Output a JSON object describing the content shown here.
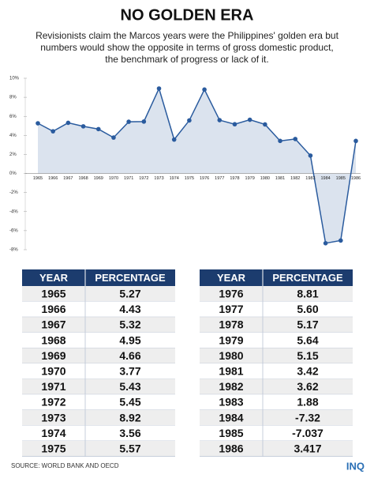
{
  "header": {
    "title": "NO GOLDEN ERA",
    "subtitle": [
      "Revisionists claim the Marcos years were the Philippines' golden era but",
      "numbers would show the opposite in terms of gross domestic product,",
      "the benchmark of progress or lack of it."
    ]
  },
  "chart_data": {
    "type": "line",
    "categories": [
      "1965",
      "1966",
      "1967",
      "1968",
      "1969",
      "1970",
      "1971",
      "1972",
      "1973",
      "1974",
      "1975",
      "1976",
      "1977",
      "1978",
      "1979",
      "1980",
      "1981",
      "1982",
      "1983",
      "1984",
      "1985",
      "1986"
    ],
    "values": [
      5.27,
      4.43,
      5.32,
      4.95,
      4.66,
      3.77,
      5.43,
      5.45,
      8.92,
      3.56,
      5.57,
      8.81,
      5.6,
      5.17,
      5.64,
      5.15,
      3.42,
      3.62,
      1.88,
      -7.32,
      -7.037,
      3.417
    ],
    "color": "#2a5b9e",
    "fill": "#dbe3ee",
    "ylim": [
      -8,
      10
    ],
    "yticks": [
      {
        "value": 10,
        "label": "10%"
      },
      {
        "value": 8,
        "label": "8%"
      },
      {
        "value": 6,
        "label": "6%"
      },
      {
        "value": 4,
        "label": "4%"
      },
      {
        "value": 2,
        "label": "2%"
      },
      {
        "value": 0,
        "label": "0%"
      },
      {
        "value": -2,
        "label": "-2%"
      },
      {
        "value": -4,
        "label": "-4%"
      },
      {
        "value": -6,
        "label": "-6%"
      },
      {
        "value": -8,
        "label": "-8%"
      }
    ]
  },
  "tables": [
    {
      "header": [
        "YEAR",
        "PERCENTAGE"
      ],
      "rows": [
        [
          "1965",
          "5.27"
        ],
        [
          "1966",
          "4.43"
        ],
        [
          "1967",
          "5.32"
        ],
        [
          "1968",
          "4.95"
        ],
        [
          "1969",
          "4.66"
        ],
        [
          "1970",
          "3.77"
        ],
        [
          "1971",
          "5.43"
        ],
        [
          "1972",
          "5.45"
        ],
        [
          "1973",
          "8.92"
        ],
        [
          "1974",
          "3.56"
        ],
        [
          "1975",
          "5.57"
        ]
      ]
    },
    {
      "header": [
        "YEAR",
        "PERCENTAGE"
      ],
      "rows": [
        [
          "1976",
          "8.81"
        ],
        [
          "1977",
          "5.60"
        ],
        [
          "1978",
          "5.17"
        ],
        [
          "1979",
          "5.64"
        ],
        [
          "1980",
          "5.15"
        ],
        [
          "1981",
          "3.42"
        ],
        [
          "1982",
          "3.62"
        ],
        [
          "1983",
          "1.88"
        ],
        [
          "1984",
          "-7.32"
        ],
        [
          "1985",
          "-7.037"
        ],
        [
          "1986",
          "3.417"
        ]
      ]
    }
  ],
  "footer": {
    "source": "SOURCE: WORLD BANK AND OECD",
    "logo": "INQ"
  }
}
